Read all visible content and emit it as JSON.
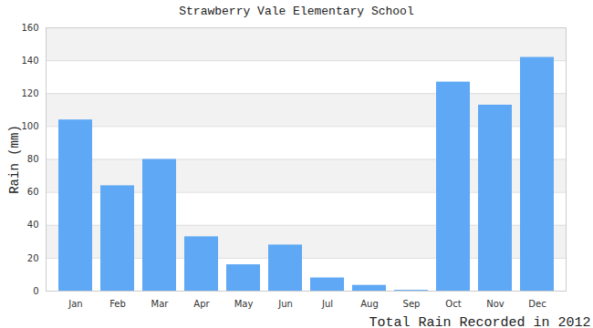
{
  "chart_data": {
    "type": "bar",
    "title": "Strawberry Vale Elementary School",
    "x_label": "Total Rain Recorded in 2012",
    "y_label": "Rain (mm)",
    "categories": [
      "Jan",
      "Feb",
      "Mar",
      "Apr",
      "May",
      "Jun",
      "Jul",
      "Aug",
      "Sep",
      "Oct",
      "Nov",
      "Dec"
    ],
    "values": [
      104,
      64,
      80,
      33,
      16,
      28,
      8,
      3.5,
      0.5,
      127,
      113,
      142
    ],
    "color": "#5ea8f5",
    "ylim": [
      0,
      160
    ],
    "yticks": [
      0,
      20,
      40,
      60,
      80,
      100,
      120,
      140,
      160
    ],
    "grid": true
  }
}
